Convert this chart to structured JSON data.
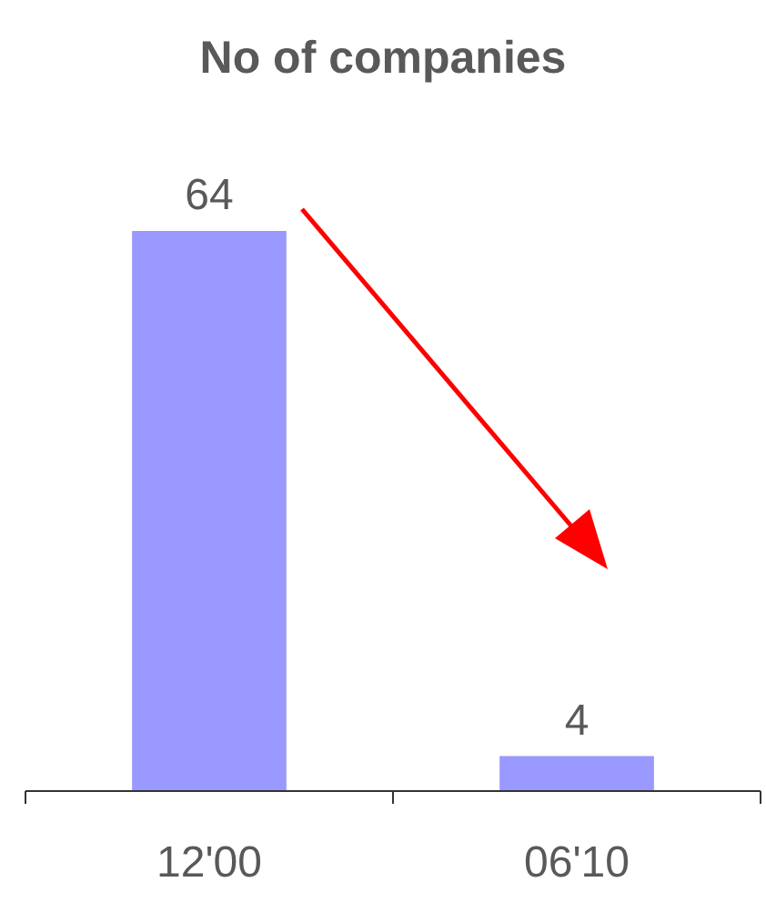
{
  "chart_data": {
    "type": "bar",
    "title": "No of companies",
    "categories": [
      "12'00",
      "06'10"
    ],
    "values": [
      64,
      4
    ],
    "color": "#9999ff",
    "data_labels": true
  }
}
